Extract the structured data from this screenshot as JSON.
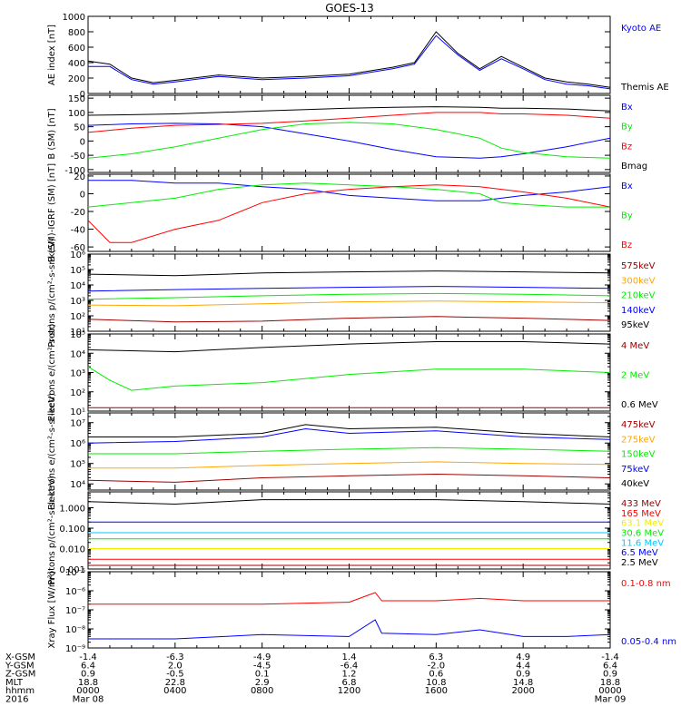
{
  "title": "GOES-13",
  "colors": {
    "black": "#000000",
    "blue": "#0000ff",
    "red": "#ff0000",
    "green": "#00ee00",
    "orange": "#ffa500",
    "darkred": "#a00000",
    "yellow": "#eeee00",
    "cyan": "#00c8ff"
  },
  "chart_data": [
    {
      "id": "ae",
      "type": "line",
      "ylabel": "AE index [nT]",
      "yscale": "linear",
      "ylim": [
        0,
        1000
      ],
      "yticks": [
        0,
        200,
        400,
        600,
        800,
        1000
      ],
      "series": [
        {
          "name": "Kyoto AE",
          "color": "#0000ff",
          "x": [
            0,
            1,
            2,
            3,
            4,
            6,
            8,
            10,
            12,
            14,
            15,
            16,
            17,
            18,
            19,
            20,
            21,
            22,
            23,
            24
          ],
          "y": [
            350,
            350,
            180,
            120,
            150,
            220,
            180,
            200,
            230,
            320,
            380,
            750,
            500,
            300,
            450,
            320,
            180,
            120,
            100,
            60
          ]
        },
        {
          "name": "Themis AE",
          "color": "#000000",
          "x": [
            0,
            1,
            2,
            3,
            4,
            6,
            8,
            10,
            12,
            14,
            15,
            16,
            17,
            18,
            19,
            20,
            21,
            22,
            23,
            24
          ],
          "y": [
            420,
            380,
            200,
            140,
            170,
            240,
            200,
            220,
            250,
            340,
            400,
            800,
            520,
            320,
            480,
            340,
            200,
            150,
            120,
            80
          ]
        }
      ]
    },
    {
      "id": "bsm",
      "type": "line",
      "ylabel": "B (SM) [nT]",
      "yscale": "linear",
      "ylim": [
        -110,
        160
      ],
      "yticks": [
        -100,
        -50,
        0,
        50,
        100,
        150
      ],
      "series": [
        {
          "name": "Bx",
          "color": "#0000ff",
          "x": [
            0,
            2,
            4,
            6,
            8,
            10,
            12,
            14,
            16,
            18,
            19,
            20,
            22,
            24
          ],
          "y": [
            55,
            60,
            62,
            60,
            50,
            25,
            0,
            -30,
            -55,
            -60,
            -55,
            -45,
            -20,
            10
          ]
        },
        {
          "name": "By",
          "color": "#00ee00",
          "x": [
            0,
            2,
            4,
            6,
            8,
            10,
            12,
            14,
            16,
            18,
            19,
            20,
            22,
            24
          ],
          "y": [
            -60,
            -45,
            -20,
            10,
            40,
            60,
            65,
            60,
            40,
            10,
            -25,
            -40,
            -55,
            -60
          ]
        },
        {
          "name": "Bz",
          "color": "#ff0000",
          "x": [
            0,
            2,
            4,
            6,
            8,
            10,
            12,
            14,
            16,
            18,
            19,
            20,
            22,
            24
          ],
          "y": [
            30,
            45,
            55,
            58,
            62,
            70,
            80,
            90,
            100,
            100,
            95,
            95,
            90,
            80
          ]
        },
        {
          "name": "Bmag",
          "color": "#000000",
          "x": [
            0,
            2,
            4,
            6,
            8,
            10,
            12,
            14,
            16,
            18,
            19,
            20,
            22,
            24
          ],
          "y": [
            90,
            92,
            95,
            100,
            105,
            110,
            115,
            118,
            120,
            118,
            115,
            115,
            112,
            105
          ]
        }
      ]
    },
    {
      "id": "bigrf",
      "type": "line",
      "ylabel": "B (SM)-IGRF (SM) [nT]",
      "yscale": "linear",
      "ylim": [
        -65,
        22
      ],
      "yticks": [
        -60,
        -40,
        -20,
        0,
        20
      ],
      "series": [
        {
          "name": "Bx",
          "color": "#0000ff",
          "x": [
            0,
            2,
            4,
            6,
            8,
            10,
            12,
            14,
            16,
            18,
            19,
            20,
            22,
            24
          ],
          "y": [
            15,
            15,
            12,
            12,
            8,
            5,
            -2,
            -5,
            -8,
            -8,
            -5,
            -2,
            2,
            8
          ]
        },
        {
          "name": "By",
          "color": "#00ee00",
          "x": [
            0,
            2,
            4,
            6,
            8,
            10,
            12,
            14,
            16,
            18,
            19,
            20,
            22,
            24
          ],
          "y": [
            -15,
            -10,
            -5,
            5,
            10,
            12,
            10,
            8,
            5,
            0,
            -10,
            -12,
            -15,
            -15
          ]
        },
        {
          "name": "Bz",
          "color": "#ff0000",
          "x": [
            0,
            1,
            2,
            4,
            6,
            8,
            10,
            12,
            14,
            16,
            18,
            19,
            20,
            22,
            24
          ],
          "y": [
            -30,
            -55,
            -55,
            -40,
            -30,
            -10,
            0,
            5,
            8,
            10,
            8,
            5,
            2,
            -5,
            -15
          ]
        }
      ]
    },
    {
      "id": "protons",
      "type": "line",
      "ylabel": "Protons p/(cm²-s-sr-keV)",
      "yscale": "log",
      "ylim": [
        10,
        1000000
      ],
      "yticks": [
        10,
        100,
        1000,
        10000,
        100000,
        1000000
      ],
      "ytick_labels": [
        "10¹",
        "10²",
        "10³",
        "10⁴",
        "10⁵",
        "10⁶"
      ],
      "series": [
        {
          "name": "575keV",
          "color": "#a00000",
          "x": [
            0,
            4,
            8,
            12,
            16,
            20,
            24
          ],
          "y": [
            60,
            40,
            45,
            70,
            90,
            70,
            50
          ]
        },
        {
          "name": "300keV",
          "color": "#ffa500",
          "x": [
            0,
            4,
            8,
            12,
            16,
            20,
            24
          ],
          "y": [
            500,
            450,
            600,
            800,
            900,
            800,
            700
          ]
        },
        {
          "name": "210keV",
          "color": "#00ee00",
          "x": [
            0,
            4,
            8,
            12,
            16,
            20,
            24
          ],
          "y": [
            1200,
            1500,
            2000,
            2500,
            2800,
            2500,
            2000
          ]
        },
        {
          "name": "140keV",
          "color": "#0000ff",
          "x": [
            0,
            4,
            8,
            12,
            16,
            20,
            24
          ],
          "y": [
            4000,
            5000,
            6000,
            7000,
            8000,
            7000,
            6000
          ]
        },
        {
          "name": "95keV",
          "color": "#000000",
          "x": [
            0,
            4,
            8,
            12,
            16,
            20,
            24
          ],
          "y": [
            50000,
            40000,
            60000,
            70000,
            80000,
            70000,
            60000
          ]
        }
      ]
    },
    {
      "id": "electrons_mev",
      "type": "line",
      "ylabel": "Electrons e/(cm²-s-sr)",
      "yscale": "log",
      "ylim": [
        10,
        100000
      ],
      "yticks": [
        10,
        100,
        1000,
        10000,
        100000
      ],
      "ytick_labels": [
        "10¹",
        "10²",
        "10³",
        "10⁴",
        "10⁵"
      ],
      "series": [
        {
          "name": "4 MeV",
          "color": "#a00000",
          "x": [
            0,
            4,
            8,
            12,
            16,
            20,
            24
          ],
          "y": [
            15,
            15,
            15,
            15,
            15,
            15,
            15
          ]
        },
        {
          "name": "2 MeV",
          "color": "#00ee00",
          "x": [
            0,
            1,
            2,
            4,
            8,
            12,
            16,
            20,
            24
          ],
          "y": [
            2000,
            400,
            120,
            200,
            300,
            800,
            1500,
            1500,
            1000
          ]
        },
        {
          "name": "0.6 MeV",
          "color": "#000000",
          "x": [
            0,
            4,
            8,
            12,
            16,
            20,
            24
          ],
          "y": [
            15000,
            12000,
            20000,
            30000,
            40000,
            40000,
            30000
          ]
        }
      ]
    },
    {
      "id": "electrons_kev",
      "type": "line",
      "ylabel": "Electrons e/(cm²-s-sr-keV)",
      "yscale": "log",
      "ylim": [
        5000,
        30000000
      ],
      "yticks": [
        10000,
        100000,
        1000000,
        10000000
      ],
      "ytick_labels": [
        "10⁴",
        "10⁵",
        "10⁶",
        "10⁷"
      ],
      "series": [
        {
          "name": "475keV",
          "color": "#a00000",
          "x": [
            0,
            4,
            8,
            12,
            16,
            20,
            24
          ],
          "y": [
            15000,
            12000,
            20000,
            25000,
            30000,
            25000,
            20000
          ]
        },
        {
          "name": "275keV",
          "color": "#ffa500",
          "x": [
            0,
            4,
            8,
            12,
            16,
            20,
            24
          ],
          "y": [
            60000,
            60000,
            80000,
            100000,
            120000,
            100000,
            90000
          ]
        },
        {
          "name": "150keV",
          "color": "#00ee00",
          "x": [
            0,
            4,
            8,
            12,
            16,
            20,
            24
          ],
          "y": [
            300000,
            300000,
            400000,
            500000,
            600000,
            500000,
            400000
          ]
        },
        {
          "name": "75keV",
          "color": "#0000ff",
          "x": [
            0,
            4,
            8,
            10,
            12,
            16,
            20,
            24
          ],
          "y": [
            1000000,
            1200000,
            2000000,
            5000000,
            3000000,
            4000000,
            2000000,
            1500000
          ]
        },
        {
          "name": "40keV",
          "color": "#000000",
          "x": [
            0,
            4,
            8,
            10,
            12,
            16,
            20,
            24
          ],
          "y": [
            2000000,
            2000000,
            3000000,
            8000000,
            5000000,
            6000000,
            3000000,
            2000000
          ]
        }
      ]
    },
    {
      "id": "protons_mev",
      "type": "line",
      "ylabel": "Protons p/(cm²-s-sr-keV)",
      "yscale": "log",
      "ylim": [
        0.001,
        6
      ],
      "yticks": [
        0.001,
        0.01,
        0.1,
        1
      ],
      "ytick_labels": [
        "0.001",
        "0.010",
        "0.100",
        "1.000"
      ],
      "series": [
        {
          "name": "433 MeV",
          "color": "#a00000",
          "x": [
            0,
            24
          ],
          "y": [
            0.0015,
            0.0015
          ]
        },
        {
          "name": "165 MeV",
          "color": "#ff0000",
          "x": [
            0,
            24
          ],
          "y": [
            0.003,
            0.003
          ]
        },
        {
          "name": "63.1 MeV",
          "color": "#eeee00",
          "x": [
            0,
            24
          ],
          "y": [
            0.01,
            0.01
          ]
        },
        {
          "name": "30.6 MeV",
          "color": "#00ee00",
          "x": [
            0,
            24
          ],
          "y": [
            0.03,
            0.03
          ]
        },
        {
          "name": "11.6 MeV",
          "color": "#00c8ff",
          "x": [
            0,
            24
          ],
          "y": [
            0.06,
            0.06
          ]
        },
        {
          "name": "6.5 MeV",
          "color": "#0000ff",
          "x": [
            0,
            24
          ],
          "y": [
            0.2,
            0.2
          ]
        },
        {
          "name": "2.5 MeV",
          "color": "#000000",
          "x": [
            0,
            4,
            8,
            12,
            16,
            20,
            24
          ],
          "y": [
            2,
            1.5,
            2.5,
            2.5,
            2.5,
            2,
            1.5
          ]
        }
      ]
    },
    {
      "id": "xray",
      "type": "line",
      "ylabel": "Xray Flux [W/m²]",
      "yscale": "log",
      "ylim": [
        1e-09,
        1e-05
      ],
      "yticks": [
        1e-09,
        1e-08,
        1e-07,
        1e-06,
        1e-05
      ],
      "ytick_labels": [
        "10⁻⁹",
        "10⁻⁸",
        "10⁻⁷",
        "10⁻⁶",
        "10⁻⁵"
      ],
      "series": [
        {
          "name": "0.1-0.8 nm",
          "color": "#ff0000",
          "x": [
            0,
            4,
            8,
            12,
            13.2,
            13.5,
            16,
            18,
            20,
            22,
            24
          ],
          "y": [
            2e-07,
            2e-07,
            2e-07,
            2.5e-07,
            8e-07,
            3e-07,
            3e-07,
            4e-07,
            3e-07,
            3e-07,
            3e-07
          ]
        },
        {
          "name": "0.05-0.4 nm",
          "color": "#0000ff",
          "x": [
            0,
            4,
            8,
            12,
            13.2,
            13.5,
            16,
            18,
            20,
            22,
            24
          ],
          "y": [
            3e-09,
            3e-09,
            5e-09,
            4e-09,
            3e-08,
            6e-09,
            5e-09,
            9e-09,
            4e-09,
            4e-09,
            5e-09
          ]
        }
      ]
    }
  ],
  "xaxis": {
    "row_labels": [
      "X-GSM",
      "Y-GSM",
      "Z-GSM",
      "MLT",
      "hhmm",
      "2016"
    ],
    "columns": [
      {
        "x": 0,
        "values": [
          "-1.4",
          "6.4",
          "0.9",
          "18.8",
          "0000",
          "Mar 08"
        ]
      },
      {
        "x": 4,
        "values": [
          "-6.3",
          "2.0",
          "-0.5",
          "22.8",
          "0400",
          ""
        ]
      },
      {
        "x": 8,
        "values": [
          "-4.9",
          "-4.5",
          "0.1",
          "2.9",
          "0800",
          ""
        ]
      },
      {
        "x": 12,
        "values": [
          "1.4",
          "-6.4",
          "1.2",
          "6.8",
          "1200",
          ""
        ]
      },
      {
        "x": 16,
        "values": [
          "6.3",
          "-2.0",
          "0.6",
          "10.8",
          "1600",
          ""
        ]
      },
      {
        "x": 20,
        "values": [
          "4.9",
          "4.4",
          "0.9",
          "14.8",
          "2000",
          ""
        ]
      },
      {
        "x": 24,
        "values": [
          "-1.4",
          "6.4",
          "0.9",
          "18.8",
          "0000",
          "Mar 09"
        ]
      }
    ]
  }
}
